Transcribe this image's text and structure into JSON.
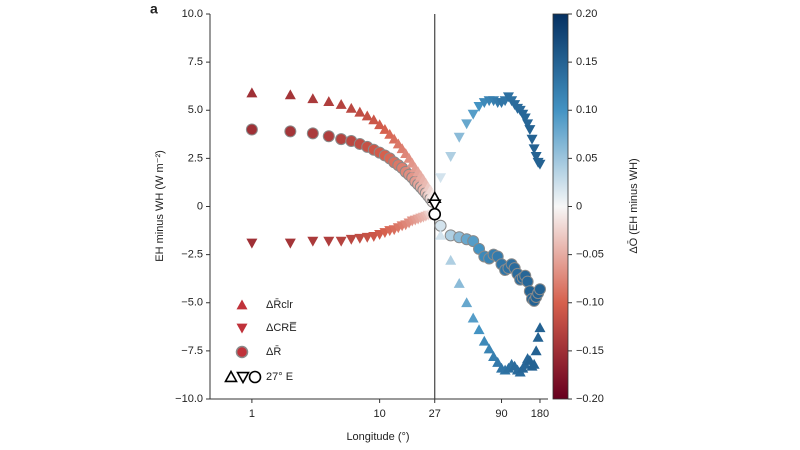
{
  "chart_data": {
    "type": "scatter",
    "panel_label": "a",
    "xlabel": "Longitude (°)",
    "ylabel": "EH minus WH (W m⁻²)",
    "xscale": "log",
    "xlim": [
      0.47,
      208
    ],
    "xticks": [
      1,
      10,
      27,
      90,
      180
    ],
    "ylim": [
      -10,
      10
    ],
    "yticks": [
      {
        "value": 10,
        "label": "10.0"
      },
      {
        "value": 7.5,
        "label": "7.5"
      },
      {
        "value": 5,
        "label": "5.0"
      },
      {
        "value": 2.5,
        "label": "2.5"
      },
      0,
      {
        "value": -2.5,
        "label": "−2.5"
      },
      {
        "value": -5,
        "label": "−5.0"
      },
      {
        "value": -7.5,
        "label": "−7.5"
      },
      {
        "value": -10,
        "label": "−10.0"
      }
    ],
    "x": [
      1,
      2,
      3,
      4,
      5,
      6,
      7,
      8,
      9,
      10,
      11,
      12,
      13,
      14,
      15,
      16,
      17,
      18,
      19,
      20,
      21,
      22,
      23,
      24,
      25,
      26,
      30,
      36,
      42,
      48,
      54,
      60,
      66,
      72,
      78,
      84,
      90,
      96,
      102,
      108,
      114,
      120,
      126,
      132,
      138,
      144,
      150,
      156,
      162,
      168,
      174,
      180
    ],
    "color_values": [
      -0.15,
      -0.145,
      -0.14,
      -0.135,
      -0.13,
      -0.125,
      -0.12,
      -0.115,
      -0.11,
      -0.105,
      -0.1,
      -0.095,
      -0.09,
      -0.085,
      -0.08,
      -0.075,
      -0.07,
      -0.065,
      -0.06,
      -0.055,
      -0.05,
      -0.045,
      -0.04,
      -0.03,
      -0.02,
      -0.01,
      0.02,
      0.04,
      0.06,
      0.08,
      0.09,
      0.1,
      0.11,
      0.115,
      0.12,
      0.125,
      0.13,
      0.13,
      0.135,
      0.135,
      0.14,
      0.14,
      0.14,
      0.145,
      0.145,
      0.145,
      0.15,
      0.15,
      0.15,
      0.15,
      0.15,
      0.15
    ],
    "colormap": [
      "#67001f",
      "#d6604d",
      "#f7f7f7",
      "#4393c3",
      "#053061"
    ],
    "colorbar": {
      "label": "ΔŌ (EH minus WH)",
      "lim": [
        -0.2,
        0.2
      ],
      "ticks": [
        {
          "value": 0.2,
          "label": "0.20"
        },
        {
          "value": 0.15,
          "label": "0.15"
        },
        {
          "value": 0.1,
          "label": "0.10"
        },
        {
          "value": 0.05,
          "label": "0.05"
        },
        0,
        {
          "value": -0.05,
          "label": "−0.05"
        },
        {
          "value": -0.1,
          "label": "−0.10"
        },
        {
          "value": -0.15,
          "label": "−0.15"
        },
        {
          "value": -0.2,
          "label": "−0.20"
        }
      ]
    },
    "series": [
      {
        "name": "ΔR̄clr",
        "marker": "triangle-up",
        "color": "#c0323a",
        "values": [
          5.9,
          5.8,
          5.6,
          5.45,
          5.3,
          5.1,
          4.9,
          4.7,
          4.5,
          4.25,
          4.0,
          3.75,
          3.5,
          3.25,
          3.0,
          2.75,
          2.5,
          2.25,
          2.0,
          1.8,
          1.6,
          1.4,
          1.2,
          1.0,
          0.85,
          0.65,
          -1.5,
          -2.8,
          -4.0,
          -5.0,
          -5.8,
          -6.4,
          -7.0,
          -7.4,
          -7.8,
          -8.1,
          -8.4,
          -8.5,
          -8.4,
          -8.2,
          -8.3,
          -8.5,
          -8.6,
          -8.4,
          -8.2,
          -7.9,
          -8.0,
          -8.3,
          -8.2,
          -7.5,
          -6.8,
          -6.3
        ]
      },
      {
        "name": "ΔCRE̅",
        "marker": "triangle-down",
        "color": "#c0323a",
        "values": [
          -1.9,
          -1.9,
          -1.8,
          -1.8,
          -1.8,
          -1.7,
          -1.65,
          -1.6,
          -1.55,
          -1.45,
          -1.35,
          -1.25,
          -1.2,
          -1.1,
          -1.0,
          -0.95,
          -0.85,
          -0.75,
          -0.7,
          -0.65,
          -0.6,
          -0.55,
          -0.5,
          -0.45,
          -0.45,
          -0.4,
          1.5,
          2.6,
          3.6,
          4.3,
          4.8,
          5.2,
          5.4,
          5.5,
          5.5,
          5.4,
          5.4,
          5.5,
          5.7,
          5.5,
          5.3,
          5.1,
          5.0,
          4.8,
          4.6,
          4.3,
          4.0,
          3.5,
          3.0,
          2.6,
          2.3,
          2.2
        ]
      },
      {
        "name": "ΔR̄",
        "marker": "circle",
        "color": "#c0323a",
        "values": [
          4.0,
          3.9,
          3.8,
          3.65,
          3.5,
          3.4,
          3.25,
          3.1,
          2.95,
          2.8,
          2.65,
          2.5,
          2.3,
          2.15,
          2.0,
          1.8,
          1.65,
          1.5,
          1.3,
          1.15,
          1.0,
          0.85,
          0.7,
          0.55,
          0.4,
          0.25,
          -1.0,
          -1.5,
          -1.6,
          -1.7,
          -1.8,
          -2.2,
          -2.6,
          -2.7,
          -2.5,
          -2.6,
          -3.0,
          -3.3,
          -3.2,
          -3.0,
          -3.2,
          -3.5,
          -3.8,
          -3.7,
          -3.6,
          -3.9,
          -4.4,
          -4.8,
          -4.9,
          -4.7,
          -4.5,
          -4.3
        ]
      }
    ],
    "highlight": {
      "label": "27° E",
      "x": 27,
      "values": [
        0.45,
        0.1,
        -0.4
      ]
    }
  }
}
